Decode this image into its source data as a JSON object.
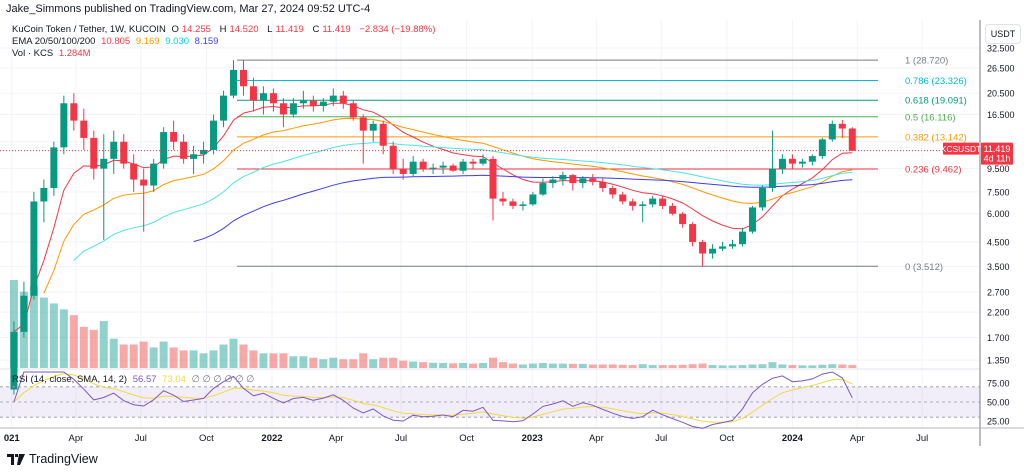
{
  "header": {
    "published": "Jake_Simmons published on TradingView.com, Mar 27, 2024 09:52 UTC-4"
  },
  "legend": {
    "symbol": "KuCoin Token / Tether, 1W, KUCOIN",
    "o_label": "O",
    "o": "14.255",
    "h_label": "H",
    "h": "14.520",
    "l_label": "L",
    "l": "11.419",
    "c_label": "C",
    "c": "11.419",
    "change": "−2.834 (−19.88%)",
    "ema_label": "EMA 20/50/100/200",
    "ema20": "10.805",
    "ema50": "9.169",
    "ema100": "9.030",
    "ema200": "8.159",
    "vol_label": "Vol · KCS",
    "vol": "1.284M",
    "rsi_label": "RSI (14, close, SMA, 14, 2)",
    "rsi": "56.57",
    "rsi_ma": "73.04",
    "rsi_na": "∅ ∅ ∅ ∅ ∅ ∅"
  },
  "price_axis": {
    "currency": "USDT",
    "ticks": [
      "32.500",
      "26.500",
      "20.500",
      "16.500",
      "12.500",
      "9.500",
      "7.500",
      "6.000",
      "4.500",
      "3.500",
      "2.700",
      "2.200",
      "1.700",
      "1.350"
    ],
    "scale": "log"
  },
  "rsi_axis": {
    "ticks": [
      "75.00",
      "50.00",
      "25.00"
    ]
  },
  "time_axis": {
    "ticks": [
      [
        "2021-01-01",
        "021"
      ],
      [
        "2021-04-01",
        "Apr"
      ],
      [
        "2021-07-01",
        "Jul"
      ],
      [
        "2021-10-01",
        "Oct"
      ],
      [
        "2022-01-01",
        "2022"
      ],
      [
        "2022-04-01",
        "Apr"
      ],
      [
        "2022-07-01",
        "Jul"
      ],
      [
        "2022-10-01",
        "Oct"
      ],
      [
        "2023-01-01",
        "2023"
      ],
      [
        "2023-04-01",
        "Apr"
      ],
      [
        "2023-07-01",
        "Jul"
      ],
      [
        "2023-10-01",
        "Oct"
      ],
      [
        "2024-01-01",
        "2024"
      ],
      [
        "2024-04-01",
        "Apr"
      ],
      [
        "2024-07-01",
        "Jul"
      ]
    ]
  },
  "last_price": {
    "symbol": "KCSUSDT",
    "price": "11.419",
    "countdown": "4d 11h",
    "value": 11.419
  },
  "colors": {
    "up": "#089981",
    "down": "#f23645",
    "ema20": "#f23645",
    "ema50": "#ff9800",
    "ema100": "#4de3e8",
    "ema200": "#3c3cf0",
    "rsi": "#7e57c2",
    "rsi_ma": "#f5d742"
  },
  "footer": {
    "brand": "TradingView"
  },
  "chart_data": {
    "type": "candlestick",
    "title": "KuCoin Token / Tether, 1W, KUCOIN",
    "yscale": "log",
    "ylim": [
      1.3,
      34
    ],
    "fib": [
      {
        "label": "1 (28.720)",
        "value": 28.72,
        "color": "#787b86"
      },
      {
        "label": "0.786 (23.326)",
        "value": 23.326,
        "color": "#00bcd4"
      },
      {
        "label": "0.618 (19.091)",
        "value": 19.091,
        "color": "#089981"
      },
      {
        "label": "0.5 (16.116)",
        "value": 16.116,
        "color": "#4caf50"
      },
      {
        "label": "0.382 (13.142)",
        "value": 13.142,
        "color": "#ff9800"
      },
      {
        "label": "0.236 (9.462)",
        "value": 9.462,
        "color": "#f23645"
      },
      {
        "label": "0 (3.512)",
        "value": 3.512,
        "color": "#787b86"
      }
    ],
    "candles": [
      [
        "2021-01-04",
        1.0,
        2.0,
        0.95,
        1.8,
        3.0
      ],
      [
        "2021-01-18",
        1.8,
        3.0,
        1.7,
        2.6,
        2.6
      ],
      [
        "2021-02-01",
        2.6,
        7.5,
        2.5,
        6.8,
        2.8
      ],
      [
        "2021-02-15",
        6.8,
        8.5,
        5.5,
        7.8,
        2.4
      ],
      [
        "2021-03-01",
        7.8,
        12.5,
        7.2,
        11.8,
        2.2
      ],
      [
        "2021-03-15",
        11.8,
        20.0,
        11.0,
        18.5,
        2.0
      ],
      [
        "2021-03-29",
        18.5,
        20.5,
        14.0,
        15.5,
        1.8
      ],
      [
        "2021-04-12",
        15.5,
        17.5,
        11.5,
        13.0,
        1.4
      ],
      [
        "2021-04-26",
        13.0,
        14.0,
        8.5,
        9.5,
        1.3
      ],
      [
        "2021-05-10",
        9.5,
        13.5,
        4.6,
        10.5,
        1.6
      ],
      [
        "2021-05-24",
        10.5,
        14.0,
        9.0,
        12.5,
        1.0
      ],
      [
        "2021-06-07",
        12.5,
        13.5,
        9.5,
        10.0,
        0.8
      ],
      [
        "2021-06-21",
        10.0,
        11.0,
        7.5,
        8.5,
        0.8
      ],
      [
        "2021-07-05",
        8.5,
        9.5,
        5.0,
        8.0,
        0.9
      ],
      [
        "2021-07-19",
        8.0,
        10.5,
        7.5,
        10.0,
        0.7
      ],
      [
        "2021-08-02",
        10.0,
        14.5,
        9.5,
        13.8,
        0.9
      ],
      [
        "2021-08-16",
        13.8,
        15.5,
        11.5,
        12.5,
        0.7
      ],
      [
        "2021-08-30",
        12.5,
        13.5,
        10.0,
        10.5,
        0.6
      ],
      [
        "2021-09-13",
        10.5,
        12.0,
        9.0,
        11.0,
        0.6
      ],
      [
        "2021-09-27",
        11.0,
        12.5,
        10.0,
        11.5,
        0.5
      ],
      [
        "2021-10-11",
        11.5,
        16.5,
        11.0,
        15.5,
        0.6
      ],
      [
        "2021-10-25",
        15.5,
        21.0,
        14.5,
        20.0,
        0.8
      ],
      [
        "2021-11-08",
        20.0,
        28.7,
        19.5,
        26.0,
        1.0
      ],
      [
        "2021-11-22",
        26.0,
        28.7,
        20.0,
        22.0,
        0.8
      ],
      [
        "2021-12-06",
        22.0,
        24.0,
        17.0,
        19.0,
        0.6
      ],
      [
        "2021-12-20",
        19.0,
        22.0,
        16.5,
        20.5,
        0.5
      ],
      [
        "2022-01-03",
        20.5,
        21.5,
        17.0,
        18.5,
        0.5
      ],
      [
        "2022-01-17",
        18.5,
        19.5,
        14.5,
        16.5,
        0.5
      ],
      [
        "2022-01-31",
        16.5,
        19.5,
        16.0,
        18.5,
        0.4
      ],
      [
        "2022-02-14",
        18.5,
        21.0,
        17.5,
        19.0,
        0.4
      ],
      [
        "2022-02-28",
        19.0,
        20.0,
        17.0,
        18.0,
        0.35
      ],
      [
        "2022-03-14",
        18.0,
        19.5,
        17.0,
        18.8,
        0.3
      ],
      [
        "2022-03-28",
        18.8,
        21.5,
        18.0,
        20.0,
        0.35
      ],
      [
        "2022-04-11",
        20.0,
        21.0,
        17.5,
        18.5,
        0.3
      ],
      [
        "2022-04-25",
        18.5,
        19.0,
        15.5,
        16.0,
        0.3
      ],
      [
        "2022-05-09",
        16.0,
        16.5,
        10.0,
        14.0,
        0.5
      ],
      [
        "2022-05-23",
        14.0,
        15.5,
        12.5,
        15.0,
        0.3
      ],
      [
        "2022-06-06",
        15.0,
        15.5,
        11.0,
        12.0,
        0.35
      ],
      [
        "2022-06-20",
        12.0,
        12.5,
        9.0,
        9.5,
        0.35
      ],
      [
        "2022-07-04",
        9.5,
        10.5,
        8.5,
        9.0,
        0.25
      ],
      [
        "2022-07-18",
        9.0,
        10.8,
        8.8,
        10.2,
        0.22
      ],
      [
        "2022-08-01",
        10.2,
        10.5,
        9.2,
        9.5,
        0.2
      ],
      [
        "2022-08-15",
        9.5,
        10.0,
        9.0,
        9.6,
        0.18
      ],
      [
        "2022-08-29",
        9.6,
        10.2,
        9.0,
        9.8,
        0.17
      ],
      [
        "2022-09-12",
        9.8,
        10.0,
        9.2,
        9.3,
        0.16
      ],
      [
        "2022-09-26",
        9.3,
        10.5,
        9.0,
        10.2,
        0.17
      ],
      [
        "2022-10-10",
        10.2,
        10.5,
        9.5,
        10.0,
        0.15
      ],
      [
        "2022-10-24",
        10.0,
        11.0,
        9.8,
        10.5,
        0.17
      ],
      [
        "2022-11-07",
        10.5,
        10.8,
        5.6,
        7.0,
        0.35
      ],
      [
        "2022-11-21",
        7.0,
        7.5,
        6.5,
        6.8,
        0.2
      ],
      [
        "2022-12-05",
        6.8,
        7.0,
        6.3,
        6.5,
        0.15
      ],
      [
        "2022-12-19",
        6.5,
        6.8,
        6.2,
        6.6,
        0.12
      ],
      [
        "2023-01-02",
        6.6,
        7.5,
        6.5,
        7.3,
        0.15
      ],
      [
        "2023-01-16",
        7.3,
        8.6,
        7.2,
        8.2,
        0.17
      ],
      [
        "2023-01-30",
        8.2,
        8.8,
        7.8,
        8.5,
        0.15
      ],
      [
        "2023-02-13",
        8.5,
        9.2,
        8.0,
        8.9,
        0.15
      ],
      [
        "2023-02-27",
        8.9,
        9.0,
        7.6,
        8.2,
        0.14
      ],
      [
        "2023-03-13",
        8.2,
        8.8,
        7.8,
        8.6,
        0.14
      ],
      [
        "2023-03-27",
        8.6,
        9.0,
        8.0,
        8.3,
        0.12
      ],
      [
        "2023-04-10",
        8.3,
        8.6,
        7.5,
        7.8,
        0.12
      ],
      [
        "2023-04-24",
        7.8,
        8.0,
        7.0,
        7.3,
        0.12
      ],
      [
        "2023-05-08",
        7.3,
        7.5,
        6.6,
        6.8,
        0.11
      ],
      [
        "2023-05-22",
        6.8,
        7.0,
        6.2,
        6.5,
        0.1
      ],
      [
        "2023-06-05",
        6.5,
        6.8,
        5.5,
        6.6,
        0.13
      ],
      [
        "2023-06-19",
        6.6,
        7.2,
        6.4,
        7.0,
        0.1
      ],
      [
        "2023-07-03",
        7.0,
        7.2,
        6.3,
        6.5,
        0.1
      ],
      [
        "2023-07-17",
        6.5,
        6.7,
        5.9,
        6.0,
        0.1
      ],
      [
        "2023-07-31",
        6.0,
        6.1,
        5.2,
        5.4,
        0.11
      ],
      [
        "2023-08-14",
        5.4,
        5.5,
        4.3,
        4.5,
        0.13
      ],
      [
        "2023-08-28",
        4.5,
        4.6,
        3.5,
        4.0,
        0.15
      ],
      [
        "2023-09-11",
        4.0,
        4.4,
        3.8,
        4.2,
        0.1
      ],
      [
        "2023-09-25",
        4.2,
        4.5,
        4.1,
        4.3,
        0.09
      ],
      [
        "2023-10-09",
        4.3,
        4.6,
        4.2,
        4.4,
        0.09
      ],
      [
        "2023-10-23",
        4.4,
        5.2,
        4.3,
        5.0,
        0.1
      ],
      [
        "2023-11-06",
        5.0,
        6.5,
        4.9,
        6.4,
        0.12
      ],
      [
        "2023-11-20",
        6.4,
        8.0,
        6.2,
        7.8,
        0.13
      ],
      [
        "2023-12-04",
        7.8,
        14.0,
        7.5,
        9.5,
        0.2
      ],
      [
        "2023-12-18",
        9.5,
        11.0,
        9.0,
        10.5,
        0.12
      ],
      [
        "2024-01-01",
        10.5,
        11.0,
        9.5,
        10.0,
        0.1
      ],
      [
        "2024-01-15",
        10.0,
        10.5,
        9.6,
        10.2,
        0.09
      ],
      [
        "2024-01-29",
        10.2,
        11.0,
        9.8,
        10.8,
        0.09
      ],
      [
        "2024-02-12",
        10.8,
        13.0,
        10.5,
        12.8,
        0.11
      ],
      [
        "2024-02-26",
        12.8,
        15.5,
        12.5,
        15.0,
        0.13
      ],
      [
        "2024-03-11",
        15.0,
        15.6,
        13.0,
        14.3,
        0.12
      ],
      [
        "2024-03-25",
        14.3,
        14.5,
        11.4,
        11.4,
        0.1
      ]
    ]
  }
}
